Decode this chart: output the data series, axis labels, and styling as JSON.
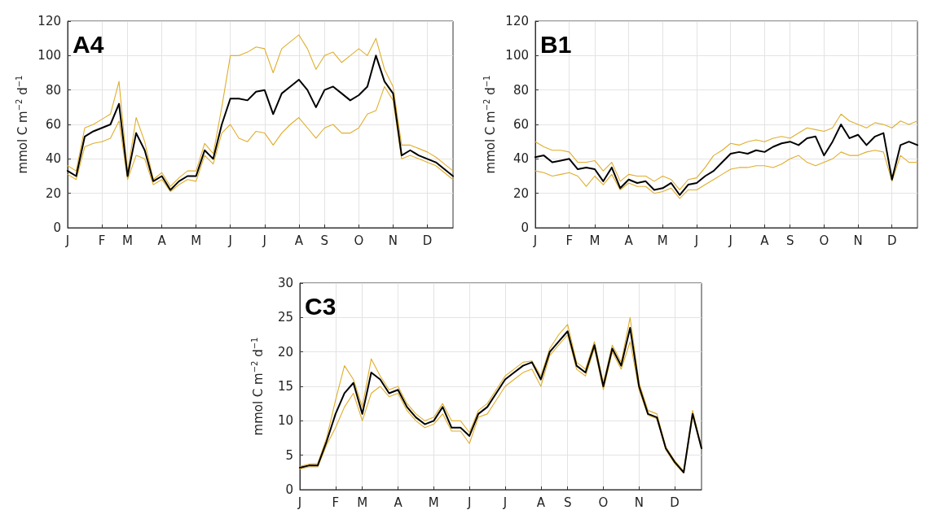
{
  "chart_data": [
    {
      "type": "line",
      "title": "A4",
      "ylabel": "mmol C m$^{−2}$ d$^{−1}$",
      "grid": true,
      "marker": "none",
      "line_style": "solid",
      "categories": [
        "J",
        null,
        null,
        null,
        "F",
        null,
        null,
        "M",
        null,
        null,
        null,
        "A",
        null,
        null,
        null,
        "M",
        null,
        null,
        null,
        "J",
        null,
        null,
        null,
        "J",
        null,
        null,
        null,
        "A",
        null,
        null,
        "S",
        null,
        null,
        null,
        "O",
        null,
        null,
        null,
        "N",
        null,
        null,
        null,
        "D",
        null,
        null,
        null
      ],
      "ylim": [
        0,
        120
      ],
      "yticks": [
        0,
        20,
        40,
        60,
        80,
        100,
        120
      ],
      "series": [
        {
          "color": "#e0ae2c",
          "values": [
            36,
            33,
            58,
            60,
            63,
            66,
            85,
            32,
            64,
            50,
            28,
            32,
            24,
            29,
            33,
            33,
            49,
            43,
            70,
            100,
            100,
            102,
            105,
            104,
            90,
            104,
            108,
            112,
            104,
            92,
            100,
            102,
            96,
            100,
            104,
            100,
            110,
            92,
            82,
            48,
            48,
            46,
            44,
            41,
            37,
            33
          ]
        },
        {
          "color": "#e0ae2c",
          "values": [
            31,
            28,
            47,
            49,
            50,
            52,
            62,
            28,
            42,
            40,
            25,
            28,
            21,
            25,
            28,
            27,
            42,
            37,
            55,
            60,
            52,
            50,
            56,
            55,
            48,
            55,
            60,
            64,
            58,
            52,
            58,
            60,
            55,
            55,
            58,
            66,
            68,
            82,
            74,
            40,
            42,
            40,
            38,
            36,
            32,
            28
          ]
        },
        {
          "color": "#000000",
          "values": [
            33,
            30,
            53,
            56,
            58,
            60,
            72,
            30,
            55,
            45,
            27,
            30,
            22,
            27,
            30,
            30,
            45,
            40,
            60,
            75,
            75,
            74,
            79,
            80,
            66,
            78,
            82,
            86,
            80,
            70,
            80,
            82,
            78,
            74,
            77,
            82,
            100,
            85,
            78,
            42,
            45,
            42,
            40,
            38,
            34,
            30
          ]
        }
      ]
    },
    {
      "type": "line",
      "title": "B1",
      "ylabel": "mmol C m$^{−2}$ d$^{−1}$",
      "grid": true,
      "marker": "none",
      "line_style": "solid",
      "categories": [
        "J",
        null,
        null,
        null,
        "F",
        null,
        null,
        "M",
        null,
        null,
        null,
        "A",
        null,
        null,
        null,
        "M",
        null,
        null,
        null,
        "J",
        null,
        null,
        null,
        "J",
        null,
        null,
        null,
        "A",
        null,
        null,
        "S",
        null,
        null,
        null,
        "O",
        null,
        null,
        null,
        "N",
        null,
        null,
        null,
        "D",
        null,
        null,
        null
      ],
      "ylim": [
        0,
        120
      ],
      "yticks": [
        0,
        20,
        40,
        60,
        80,
        100,
        120
      ],
      "series": [
        {
          "color": "#e0ae2c",
          "values": [
            50,
            47,
            45,
            45,
            44,
            38,
            38,
            39,
            33,
            38,
            27,
            31,
            30,
            30,
            27,
            30,
            28,
            22,
            28,
            29,
            35,
            42,
            45,
            49,
            48,
            50,
            51,
            50,
            52,
            53,
            52,
            55,
            58,
            57,
            56,
            58,
            66,
            62,
            60,
            58,
            61,
            60,
            58,
            62,
            60,
            62
          ]
        },
        {
          "color": "#e0ae2c",
          "values": [
            33,
            32,
            30,
            31,
            32,
            30,
            24,
            30,
            25,
            31,
            22,
            26,
            24,
            24,
            20,
            21,
            23,
            17,
            22,
            22,
            25,
            28,
            31,
            34,
            35,
            35,
            36,
            36,
            35,
            37,
            40,
            42,
            38,
            36,
            38,
            40,
            44,
            42,
            42,
            44,
            45,
            44,
            27,
            42,
            38,
            38
          ]
        },
        {
          "color": "#000000",
          "values": [
            41,
            42,
            38,
            39,
            40,
            34,
            35,
            34,
            27,
            35,
            23,
            28,
            26,
            27,
            22,
            23,
            26,
            19,
            25,
            26,
            30,
            33,
            38,
            43,
            44,
            43,
            45,
            44,
            47,
            49,
            50,
            48,
            52,
            53,
            42,
            50,
            60,
            52,
            54,
            48,
            53,
            55,
            28,
            48,
            50,
            48
          ]
        }
      ]
    },
    {
      "type": "line",
      "title": "C3",
      "ylabel": "mmol C m$^{−2}$ d$^{−1}$",
      "grid": true,
      "marker": "none",
      "line_style": "solid",
      "categories": [
        "J",
        null,
        null,
        null,
        "F",
        null,
        null,
        "M",
        null,
        null,
        null,
        "A",
        null,
        null,
        null,
        "M",
        null,
        null,
        null,
        "J",
        null,
        null,
        null,
        "J",
        null,
        null,
        null,
        "A",
        null,
        null,
        "S",
        null,
        null,
        null,
        "O",
        null,
        null,
        null,
        "N",
        null,
        null,
        null,
        "D",
        null,
        null,
        null
      ],
      "ylim": [
        0,
        30
      ],
      "yticks": [
        0,
        5,
        10,
        15,
        20,
        25,
        30
      ],
      "series": [
        {
          "color": "#e0ae2c",
          "values": [
            3.4,
            3.7,
            3.8,
            7.5,
            13,
            18,
            16,
            12,
            19,
            16.5,
            14.5,
            15,
            12.5,
            11,
            10,
            10.5,
            12.5,
            10,
            10,
            8.3,
            11.5,
            12.5,
            14.5,
            16.5,
            17.5,
            18.5,
            18.7,
            16.5,
            20.5,
            22.5,
            24,
            18.5,
            17.5,
            21.5,
            15.5,
            21,
            18.5,
            25,
            15.5,
            11.5,
            11,
            6.2,
            4.2,
            2.7,
            11.5,
            6.2
          ]
        },
        {
          "color": "#e0ae2c",
          "values": [
            3,
            3.3,
            3.3,
            6.5,
            9,
            12,
            14,
            10,
            14,
            15,
            13.5,
            14,
            11.5,
            10,
            9,
            9.5,
            11,
            8.5,
            8.5,
            6.7,
            10.5,
            11,
            13,
            15,
            16,
            17,
            17.5,
            15,
            19.5,
            21,
            22.5,
            17.5,
            16.5,
            20.5,
            14.5,
            20,
            17.5,
            21.5,
            14.5,
            10.8,
            10.3,
            5.8,
            3.8,
            2.4,
            10.8,
            5.8
          ]
        },
        {
          "color": "#000000",
          "values": [
            3.2,
            3.5,
            3.5,
            7,
            11,
            14,
            15.5,
            11,
            17,
            16,
            14,
            14.5,
            12,
            10.5,
            9.5,
            10,
            12,
            9,
            9,
            7.8,
            11,
            12,
            14,
            16,
            17,
            18,
            18.5,
            16,
            20,
            21.5,
            23,
            18,
            17,
            21,
            15,
            20.5,
            18,
            23.5,
            15,
            11,
            10.5,
            6,
            4,
            2.5,
            11,
            6
          ]
        }
      ]
    }
  ]
}
